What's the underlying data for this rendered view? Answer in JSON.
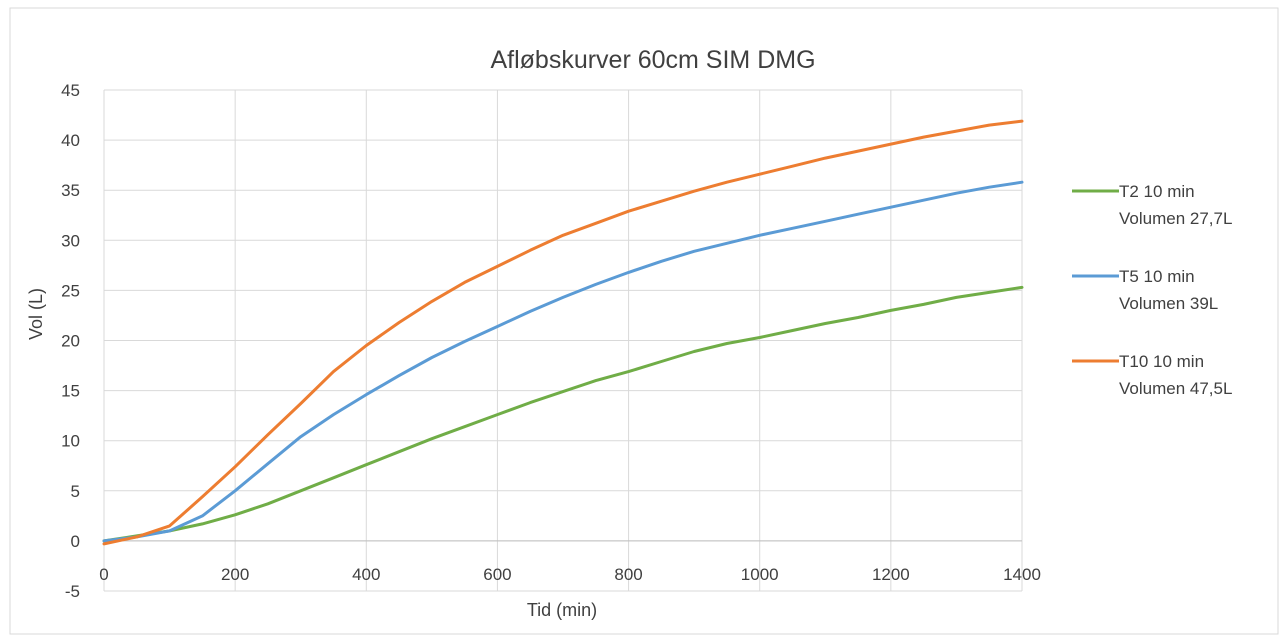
{
  "chart_data": {
    "type": "line",
    "title": "Afløbskurver 60cm SIM DMG",
    "xlabel": "Tid (min)",
    "ylabel": "Vol (L)",
    "xlim": [
      0,
      1400
    ],
    "ylim": [
      -5,
      45
    ],
    "x_ticks": [
      0,
      200,
      400,
      600,
      800,
      1000,
      1200,
      1400
    ],
    "y_ticks": [
      -5,
      0,
      5,
      10,
      15,
      20,
      25,
      30,
      35,
      40,
      45
    ],
    "grid": true,
    "legend_position": "right",
    "series": [
      {
        "name": "T2 10 min Volumen 27,7L",
        "legend_lines": [
          "T2 10 min",
          "Volumen 27,7L"
        ],
        "color": "#70ad47",
        "x": [
          0,
          50,
          100,
          150,
          200,
          250,
          300,
          350,
          400,
          450,
          500,
          550,
          600,
          650,
          700,
          750,
          800,
          850,
          900,
          950,
          1000,
          1050,
          1100,
          1150,
          1200,
          1250,
          1300,
          1350,
          1400
        ],
        "y": [
          0,
          0.5,
          1.0,
          1.7,
          2.6,
          3.7,
          5.0,
          6.3,
          7.6,
          8.9,
          10.2,
          11.4,
          12.6,
          13.8,
          14.9,
          16.0,
          16.9,
          17.9,
          18.9,
          19.7,
          20.3,
          21.0,
          21.7,
          22.3,
          23.0,
          23.6,
          24.3,
          24.8,
          25.3
        ]
      },
      {
        "name": "T5 10 min Volumen 39L",
        "legend_lines": [
          "T5 10 min",
          "Volumen 39L"
        ],
        "color": "#5b9bd5",
        "x": [
          0,
          50,
          100,
          150,
          200,
          250,
          300,
          350,
          400,
          450,
          500,
          550,
          600,
          650,
          700,
          750,
          800,
          850,
          900,
          950,
          1000,
          1050,
          1100,
          1150,
          1200,
          1250,
          1300,
          1350,
          1400
        ],
        "y": [
          0,
          0.4,
          1.0,
          2.5,
          5.0,
          7.7,
          10.4,
          12.6,
          14.6,
          16.5,
          18.3,
          19.9,
          21.4,
          22.9,
          24.3,
          25.6,
          26.8,
          27.9,
          28.9,
          29.7,
          30.5,
          31.2,
          31.9,
          32.6,
          33.3,
          34.0,
          34.7,
          35.3,
          35.8
        ]
      },
      {
        "name": "T10 10 min Volumen 47,5L",
        "legend_lines": [
          "T10 10 min",
          "Volumen 47,5L"
        ],
        "color": "#ed7d31",
        "x": [
          0,
          50,
          100,
          150,
          200,
          250,
          300,
          350,
          400,
          450,
          500,
          550,
          600,
          650,
          700,
          750,
          800,
          850,
          900,
          950,
          1000,
          1050,
          1100,
          1150,
          1200,
          1250,
          1300,
          1350,
          1400
        ],
        "y": [
          -0.3,
          0.4,
          1.5,
          4.4,
          7.4,
          10.6,
          13.7,
          16.9,
          19.5,
          21.8,
          23.9,
          25.8,
          27.4,
          29.0,
          30.5,
          31.7,
          32.9,
          33.9,
          34.9,
          35.8,
          36.6,
          37.4,
          38.2,
          38.9,
          39.6,
          40.3,
          40.9,
          41.5,
          41.9
        ]
      }
    ]
  }
}
